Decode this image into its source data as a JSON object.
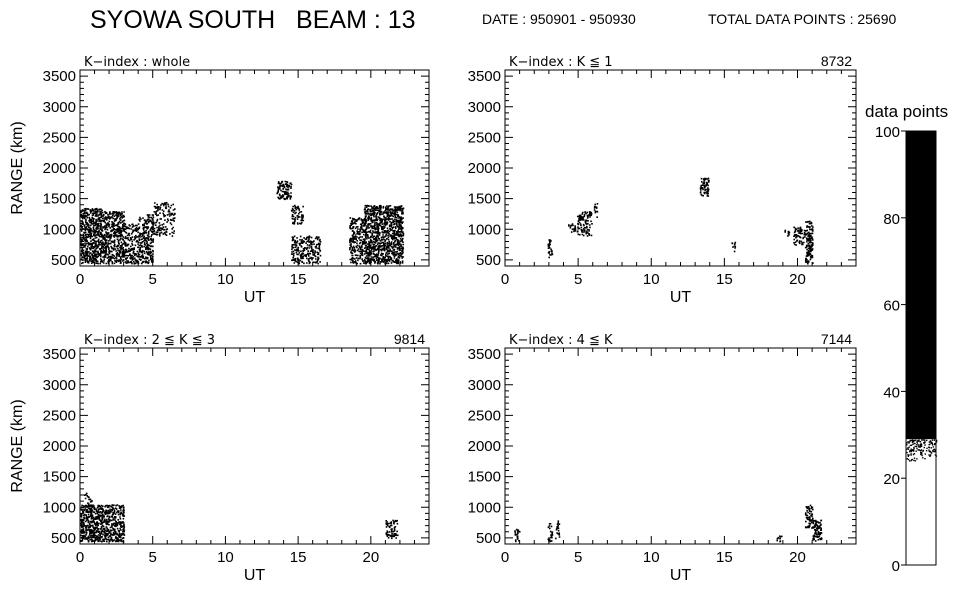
{
  "header": {
    "title": "SYOWA SOUTH   BEAM : 13",
    "date": "DATE : 950901 - 950930",
    "total": "TOTAL DATA POINTS : 25690"
  },
  "colors": {
    "ink": "#000000",
    "background": "#ffffff"
  },
  "chart_data": [
    {
      "type": "scatter",
      "panel_label": "K−index : whole",
      "count": "",
      "xlabel": "UT",
      "ylabel": "RANGE (km)",
      "xlim": [
        0,
        24
      ],
      "ylim": [
        400,
        3600
      ],
      "xticks": [
        0,
        5,
        10,
        15,
        20
      ],
      "yticks": [
        500,
        1000,
        1500,
        2000,
        2500,
        3000,
        3500
      ],
      "regions": [
        {
          "x": [
            0,
            1.5
          ],
          "y": [
            450,
            1350
          ],
          "density": 0.85
        },
        {
          "x": [
            1.5,
            3.0
          ],
          "y": [
            450,
            1300
          ],
          "density": 0.75
        },
        {
          "x": [
            3.0,
            4.0
          ],
          "y": [
            450,
            1100
          ],
          "density": 0.55
        },
        {
          "x": [
            4.0,
            5.0
          ],
          "y": [
            450,
            1250
          ],
          "density": 0.65
        },
        {
          "x": [
            5.0,
            6.5
          ],
          "y": [
            900,
            1450
          ],
          "density": 0.35
        },
        {
          "x": [
            13.5,
            14.5
          ],
          "y": [
            1500,
            1800
          ],
          "density": 0.7
        },
        {
          "x": [
            14.5,
            15.3
          ],
          "y": [
            1100,
            1400
          ],
          "density": 0.5
        },
        {
          "x": [
            14.5,
            16.5
          ],
          "y": [
            450,
            900
          ],
          "density": 0.55
        },
        {
          "x": [
            18.5,
            19.5
          ],
          "y": [
            450,
            1200
          ],
          "density": 0.6
        },
        {
          "x": [
            19.5,
            22.2
          ],
          "y": [
            450,
            1400
          ],
          "density": 0.85
        }
      ]
    },
    {
      "type": "scatter",
      "panel_label": "K−index : K ≦ 1",
      "count": "8732",
      "xlabel": "UT",
      "ylabel": "",
      "xlim": [
        0,
        24
      ],
      "ylim": [
        400,
        3600
      ],
      "xticks": [
        0,
        5,
        10,
        15,
        20
      ],
      "yticks": [
        500,
        1000,
        1500,
        2000,
        2500,
        3000,
        3500
      ],
      "regions": [
        {
          "x": [
            2.9,
            3.2
          ],
          "y": [
            550,
            850
          ],
          "density": 0.6
        },
        {
          "x": [
            4.3,
            4.8
          ],
          "y": [
            950,
            1100
          ],
          "density": 0.6
        },
        {
          "x": [
            4.9,
            5.9
          ],
          "y": [
            900,
            1300
          ],
          "density": 0.55
        },
        {
          "x": [
            6.0,
            6.3
          ],
          "y": [
            1200,
            1450
          ],
          "density": 0.4
        },
        {
          "x": [
            13.3,
            13.9
          ],
          "y": [
            1550,
            1850
          ],
          "density": 0.7
        },
        {
          "x": [
            15.4,
            15.7
          ],
          "y": [
            650,
            800
          ],
          "density": 0.4
        },
        {
          "x": [
            19.0,
            19.4
          ],
          "y": [
            900,
            1000
          ],
          "density": 0.5
        },
        {
          "x": [
            19.7,
            20.5
          ],
          "y": [
            750,
            1050
          ],
          "density": 0.55
        },
        {
          "x": [
            20.5,
            21.0
          ],
          "y": [
            450,
            1150
          ],
          "density": 0.85
        }
      ]
    },
    {
      "type": "scatter",
      "panel_label": "K−index : 2 ≦ K ≦ 3",
      "count": "9814",
      "xlabel": "UT",
      "ylabel": "RANGE (km)",
      "xlim": [
        0,
        24
      ],
      "ylim": [
        400,
        3600
      ],
      "xticks": [
        0,
        5,
        10,
        15,
        20
      ],
      "yticks": [
        500,
        1000,
        1500,
        2000,
        2500,
        3000,
        3500
      ],
      "regions": [
        {
          "x": [
            0,
            3.0
          ],
          "y": [
            450,
            1050
          ],
          "density": 0.85
        },
        {
          "x": [
            0.2,
            0.8
          ],
          "y": [
            1050,
            1250
          ],
          "density": 0.25
        },
        {
          "x": [
            21.0,
            21.8
          ],
          "y": [
            500,
            800
          ],
          "density": 0.55
        }
      ]
    },
    {
      "type": "scatter",
      "panel_label": "K−index : 4 ≦ K",
      "count": "7144",
      "xlabel": "UT",
      "ylabel": "",
      "xlim": [
        0,
        24
      ],
      "ylim": [
        400,
        3600
      ],
      "xticks": [
        0,
        5,
        10,
        15,
        20
      ],
      "yticks": [
        500,
        1000,
        1500,
        2000,
        2500,
        3000,
        3500
      ],
      "regions": [
        {
          "x": [
            0.6,
            1.0
          ],
          "y": [
            450,
            650
          ],
          "density": 0.55
        },
        {
          "x": [
            2.9,
            3.2
          ],
          "y": [
            450,
            750
          ],
          "density": 0.55
        },
        {
          "x": [
            3.4,
            3.7
          ],
          "y": [
            500,
            800
          ],
          "density": 0.45
        },
        {
          "x": [
            18.5,
            18.9
          ],
          "y": [
            450,
            550
          ],
          "density": 0.5
        },
        {
          "x": [
            20.5,
            21.0
          ],
          "y": [
            650,
            1050
          ],
          "density": 0.65
        },
        {
          "x": [
            21.0,
            21.6
          ],
          "y": [
            450,
            800
          ],
          "density": 0.85
        }
      ]
    }
  ],
  "colorbar": {
    "label": "data points",
    "ticks": [
      0,
      20,
      40,
      60,
      80,
      100
    ],
    "ylim": [
      0,
      100
    ],
    "solid_from": 29,
    "speckle_from": 24
  }
}
